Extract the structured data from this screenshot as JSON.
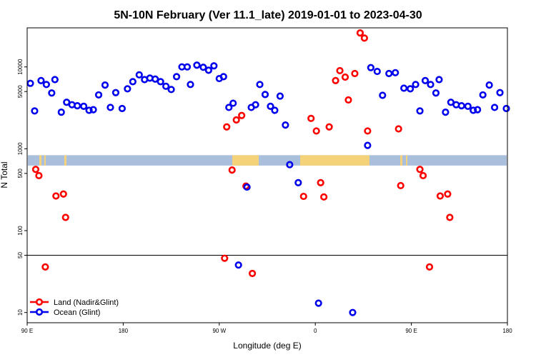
{
  "chart_data": {
    "type": "scatter",
    "title": "5N-10N February (Ver 11.1_late)   2019-01-01 to 2023-04-30",
    "xlabel": "Longitude (deg E)",
    "ylabel": "N Total",
    "x_scale": "longitude, 90E to 180 (wrapping through 180, 90W, 0, 90E)",
    "x_ticks": [
      {
        "value": 90,
        "label": "90 E"
      },
      {
        "value": 180,
        "label": "180"
      },
      {
        "value": 270,
        "label": "90 W"
      },
      {
        "value": 360,
        "label": "0"
      },
      {
        "value": 450,
        "label": "90 E"
      },
      {
        "value": 540,
        "label": "180"
      }
    ],
    "xlim": [
      90,
      540
    ],
    "y_scale": "log",
    "ylim": [
      7.5,
      30000
    ],
    "y_ticks": [
      {
        "value": 10,
        "label": "10"
      },
      {
        "value": 50,
        "label": "50"
      },
      {
        "value": 100,
        "label": "100"
      },
      {
        "value": 500,
        "label": "500"
      },
      {
        "value": 1000,
        "label": "1000"
      },
      {
        "value": 5000,
        "label": "5000"
      },
      {
        "value": 10000,
        "label": "10000"
      }
    ],
    "reference_line": 50,
    "colors": {
      "land": "#ff0000",
      "ocean": "#0000ee",
      "map_ocean": "#a9bfdc",
      "map_land": "#f4d27a"
    },
    "legend": {
      "position": "bottom-left",
      "entries": [
        {
          "name": "Land (Nadir&Glint)",
          "color": "#ff0000"
        },
        {
          "name": "Ocean (Glint)",
          "color": "#0000ee"
        }
      ]
    },
    "series": [
      {
        "name": "Land (Nadir&Glint)",
        "color": "#ff0000",
        "points": [
          {
            "x": 98,
            "y": 560
          },
          {
            "x": 101,
            "y": 470
          },
          {
            "x": 107,
            "y": 36
          },
          {
            "x": 117,
            "y": 265
          },
          {
            "x": 124,
            "y": 280
          },
          {
            "x": 126,
            "y": 145
          },
          {
            "x": 275,
            "y": 46
          },
          {
            "x": 277,
            "y": 1850
          },
          {
            "x": 282,
            "y": 550
          },
          {
            "x": 286,
            "y": 2250
          },
          {
            "x": 291,
            "y": 2550
          },
          {
            "x": 295,
            "y": 350
          },
          {
            "x": 301,
            "y": 30
          },
          {
            "x": 349,
            "y": 262
          },
          {
            "x": 356,
            "y": 2350
          },
          {
            "x": 361,
            "y": 1650
          },
          {
            "x": 365,
            "y": 385
          },
          {
            "x": 368,
            "y": 258
          },
          {
            "x": 373,
            "y": 1850
          },
          {
            "x": 379,
            "y": 6800
          },
          {
            "x": 383,
            "y": 9000
          },
          {
            "x": 388,
            "y": 7500
          },
          {
            "x": 391,
            "y": 3950
          },
          {
            "x": 397,
            "y": 8300
          },
          {
            "x": 402,
            "y": 26000
          },
          {
            "x": 406,
            "y": 22500
          },
          {
            "x": 409,
            "y": 1650
          },
          {
            "x": 438,
            "y": 1750
          },
          {
            "x": 440,
            "y": 355
          },
          {
            "x": 458,
            "y": 560
          },
          {
            "x": 461,
            "y": 470
          },
          {
            "x": 467,
            "y": 36
          },
          {
            "x": 477,
            "y": 265
          },
          {
            "x": 484,
            "y": 280
          },
          {
            "x": 486,
            "y": 145
          }
        ]
      },
      {
        "name": "Ocean (Glint)",
        "color": "#0000ee",
        "points": [
          {
            "x": 93,
            "y": 6300
          },
          {
            "x": 97,
            "y": 2900
          },
          {
            "x": 103,
            "y": 6800
          },
          {
            "x": 108,
            "y": 6100
          },
          {
            "x": 113,
            "y": 4800
          },
          {
            "x": 116,
            "y": 7000
          },
          {
            "x": 122,
            "y": 2800
          },
          {
            "x": 127,
            "y": 3700
          },
          {
            "x": 132,
            "y": 3450
          },
          {
            "x": 137,
            "y": 3350
          },
          {
            "x": 143,
            "y": 3300
          },
          {
            "x": 148,
            "y": 2950
          },
          {
            "x": 152,
            "y": 3000
          },
          {
            "x": 157,
            "y": 4550
          },
          {
            "x": 163,
            "y": 6000
          },
          {
            "x": 168,
            "y": 3200
          },
          {
            "x": 173,
            "y": 4850
          },
          {
            "x": 179,
            "y": 3100
          },
          {
            "x": 184,
            "y": 5400
          },
          {
            "x": 189,
            "y": 6600
          },
          {
            "x": 195,
            "y": 8000
          },
          {
            "x": 200,
            "y": 7000
          },
          {
            "x": 205,
            "y": 7300
          },
          {
            "x": 210,
            "y": 7100
          },
          {
            "x": 215,
            "y": 6600
          },
          {
            "x": 220,
            "y": 5800
          },
          {
            "x": 225,
            "y": 5300
          },
          {
            "x": 230,
            "y": 7600
          },
          {
            "x": 235,
            "y": 10000
          },
          {
            "x": 240,
            "y": 10000
          },
          {
            "x": 243,
            "y": 6100
          },
          {
            "x": 249,
            "y": 10500
          },
          {
            "x": 255,
            "y": 9900
          },
          {
            "x": 260,
            "y": 9100
          },
          {
            "x": 265,
            "y": 10300
          },
          {
            "x": 270,
            "y": 7200
          },
          {
            "x": 274,
            "y": 7600
          },
          {
            "x": 279,
            "y": 3200
          },
          {
            "x": 283,
            "y": 3600
          },
          {
            "x": 288,
            "y": 38
          },
          {
            "x": 296,
            "y": 340
          },
          {
            "x": 300,
            "y": 3200
          },
          {
            "x": 304,
            "y": 3450
          },
          {
            "x": 308,
            "y": 6100
          },
          {
            "x": 313,
            "y": 4600
          },
          {
            "x": 318,
            "y": 3300
          },
          {
            "x": 322,
            "y": 2950
          },
          {
            "x": 327,
            "y": 4400
          },
          {
            "x": 332,
            "y": 1950
          },
          {
            "x": 336,
            "y": 640
          },
          {
            "x": 344,
            "y": 385
          },
          {
            "x": 363,
            "y": 13
          },
          {
            "x": 395,
            "y": 10
          },
          {
            "x": 409,
            "y": 1100
          },
          {
            "x": 412,
            "y": 9800
          },
          {
            "x": 418,
            "y": 8800
          },
          {
            "x": 423,
            "y": 4500
          },
          {
            "x": 429,
            "y": 8300
          },
          {
            "x": 435,
            "y": 8500
          },
          {
            "x": 443,
            "y": 5500
          },
          {
            "x": 449,
            "y": 5400
          },
          {
            "x": 454,
            "y": 6100
          },
          {
            "x": 458,
            "y": 2900
          },
          {
            "x": 463,
            "y": 6800
          },
          {
            "x": 468,
            "y": 6100
          },
          {
            "x": 473,
            "y": 4800
          },
          {
            "x": 476,
            "y": 7000
          },
          {
            "x": 482,
            "y": 2800
          },
          {
            "x": 487,
            "y": 3700
          },
          {
            "x": 492,
            "y": 3450
          },
          {
            "x": 497,
            "y": 3350
          },
          {
            "x": 503,
            "y": 3300
          },
          {
            "x": 508,
            "y": 2950
          },
          {
            "x": 512,
            "y": 3000
          },
          {
            "x": 517,
            "y": 4550
          },
          {
            "x": 523,
            "y": 6000
          },
          {
            "x": 528,
            "y": 3200
          },
          {
            "x": 533,
            "y": 4850
          },
          {
            "x": 539,
            "y": 3100
          }
        ]
      }
    ]
  }
}
